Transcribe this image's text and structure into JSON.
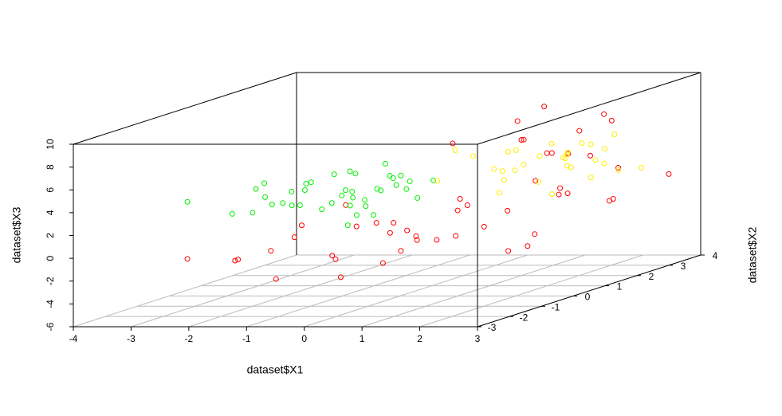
{
  "chart_data": {
    "type": "scatter3d",
    "xlabel": "dataset$X1",
    "ylabel": "dataset$X2",
    "zlabel": "dataset$X3",
    "xlim": [
      -4,
      3
    ],
    "ylim": [
      -3,
      4
    ],
    "zlim": [
      -6,
      10
    ],
    "xticks": [
      -4,
      -3,
      -2,
      -1,
      0,
      1,
      2,
      3
    ],
    "yticks": [
      -3,
      -2,
      -1,
      0,
      1,
      2,
      3,
      4
    ],
    "zticks": [
      -6,
      -4,
      -2,
      0,
      2,
      4,
      6,
      8,
      10
    ],
    "grid": true,
    "series": [
      {
        "color": "#ff0000",
        "x": [
          -2.3,
          -1.7,
          -1.0,
          -0.6,
          -0.2,
          0.1,
          0.4,
          0.7,
          1.0,
          1.3,
          1.6,
          1.9,
          2.2,
          2.5,
          2.8,
          -0.8,
          -0.4,
          0.0,
          0.3,
          0.6,
          0.9,
          1.2,
          1.5,
          1.8,
          2.1,
          2.4,
          2.7,
          3.0,
          -1.2,
          0.2,
          0.8,
          1.4,
          2.0,
          2.6,
          -0.1,
          0.5,
          1.1,
          1.7,
          2.3,
          2.9,
          0.0,
          0.6,
          1.3,
          1.9,
          2.5,
          1.0,
          1.6,
          2.2,
          2.8,
          0.4
        ],
        "y": [
          -2.5,
          -2.0,
          -1.5,
          -2.8,
          -1.0,
          -2.2,
          -0.5,
          -1.8,
          0.0,
          -1.2,
          0.5,
          -0.8,
          1.0,
          -0.3,
          1.5,
          -2.6,
          -1.4,
          -0.2,
          -2.4,
          0.8,
          -1.6,
          1.2,
          -0.6,
          2.0,
          0.2,
          2.5,
          1.8,
          3.0,
          -3.0,
          -1.1,
          0.3,
          -2.0,
          1.4,
          -0.9,
          -2.9,
          -0.4,
          -2.3,
          2.2,
          0.6,
          -1.0,
          -1.7,
          2.6,
          -0.7,
          3.2,
          1.1,
          2.8,
          3.5,
          -0.1,
          0.9,
          3.8
        ],
        "z": [
          -0.5,
          -1.0,
          0.5,
          -2.0,
          1.0,
          -0.8,
          0.2,
          -1.5,
          1.5,
          0.0,
          -2.5,
          0.8,
          2.0,
          -0.3,
          1.0,
          0.3,
          -1.2,
          0.6,
          -2.2,
          1.8,
          -0.6,
          0.4,
          2.5,
          1.2,
          -1.8,
          3.0,
          0.9,
          2.0,
          -0.2,
          1.4,
          -1.0,
          0.7,
          2.2,
          8.5,
          2.8,
          -0.4,
          1.6,
          4.5,
          6.0,
          5.0,
          3.5,
          7.0,
          8.0,
          6.5,
          7.5,
          4.0,
          6.8,
          7.8,
          5.5,
          7.2
        ]
      },
      {
        "color": "#00ee00",
        "x": [
          -2.3,
          -1.8,
          -1.5,
          -1.2,
          -1.0,
          -0.8,
          -0.6,
          -0.5,
          -0.3,
          -0.2,
          0.0,
          0.1,
          0.2,
          0.3,
          0.4,
          0.5,
          0.6,
          0.7,
          0.8,
          0.9,
          -1.4,
          -0.9,
          -0.4,
          0.1,
          0.5,
          -1.1,
          -0.7,
          0.3,
          0.6,
          -0.1,
          -2.0,
          -1.6,
          -0.2,
          0.4,
          0.8,
          1.0,
          -0.5,
          0.2,
          -1.3,
          0.0
        ],
        "y": [
          -2.5,
          -2.0,
          -1.8,
          -1.5,
          -2.2,
          -1.0,
          -1.7,
          -0.8,
          -2.4,
          -1.2,
          -1.5,
          -0.5,
          -2.0,
          -1.0,
          -1.8,
          -0.7,
          -1.3,
          -2.1,
          -0.4,
          -1.6,
          -0.6,
          -2.6,
          -1.1,
          -0.9,
          -2.3,
          -1.4,
          -0.3,
          -1.9,
          -1.2,
          -2.8,
          -1.0,
          -0.5,
          -1.7,
          -2.2,
          -0.9,
          -1.5,
          -0.2,
          -2.5,
          -1.9,
          -0.6
        ],
        "z": [
          4.5,
          3.0,
          5.0,
          3.5,
          4.0,
          2.5,
          5.5,
          4.0,
          6.0,
          3.0,
          4.5,
          5.0,
          2.0,
          6.5,
          3.5,
          4.0,
          5.5,
          3.0,
          4.5,
          6.0,
          2.5,
          5.0,
          3.8,
          4.2,
          6.8,
          3.2,
          5.2,
          2.8,
          4.8,
          5.8,
          2.2,
          3.6,
          6.2,
          4.6,
          3.4,
          5.4,
          2.6,
          4.4,
          5.6,
          3.8
        ]
      },
      {
        "color": "#ffee00",
        "x": [
          1.2,
          1.5,
          1.8,
          2.0,
          2.2,
          2.4,
          2.6,
          2.8,
          1.4,
          1.7,
          1.9,
          2.1,
          2.3,
          2.5,
          2.7,
          2.9,
          1.3,
          1.6,
          2.0,
          2.4,
          2.8,
          1.1,
          1.5,
          1.9,
          2.3,
          2.7,
          1.8,
          2.2,
          2.6,
          3.0
        ],
        "y": [
          -1.0,
          0.5,
          1.5,
          -0.5,
          2.0,
          0.0,
          1.0,
          2.5,
          -0.8,
          0.8,
          1.8,
          -0.2,
          1.2,
          2.2,
          0.3,
          1.6,
          0.6,
          -0.6,
          2.8,
          0.9,
          -0.3,
          1.4,
          2.4,
          0.2,
          -0.9,
          1.1,
          2.0,
          0.4,
          1.7,
          0.7
        ],
        "z": [
          5.0,
          4.5,
          6.0,
          3.5,
          5.5,
          4.0,
          6.5,
          3.0,
          7.5,
          4.8,
          3.8,
          5.2,
          4.2,
          6.2,
          5.8,
          3.6,
          4.6,
          6.8,
          4.4,
          5.6,
          3.2,
          5.4,
          4.0,
          6.6,
          5.0,
          3.4,
          4.8,
          5.9,
          4.1,
          5.3
        ]
      }
    ]
  }
}
